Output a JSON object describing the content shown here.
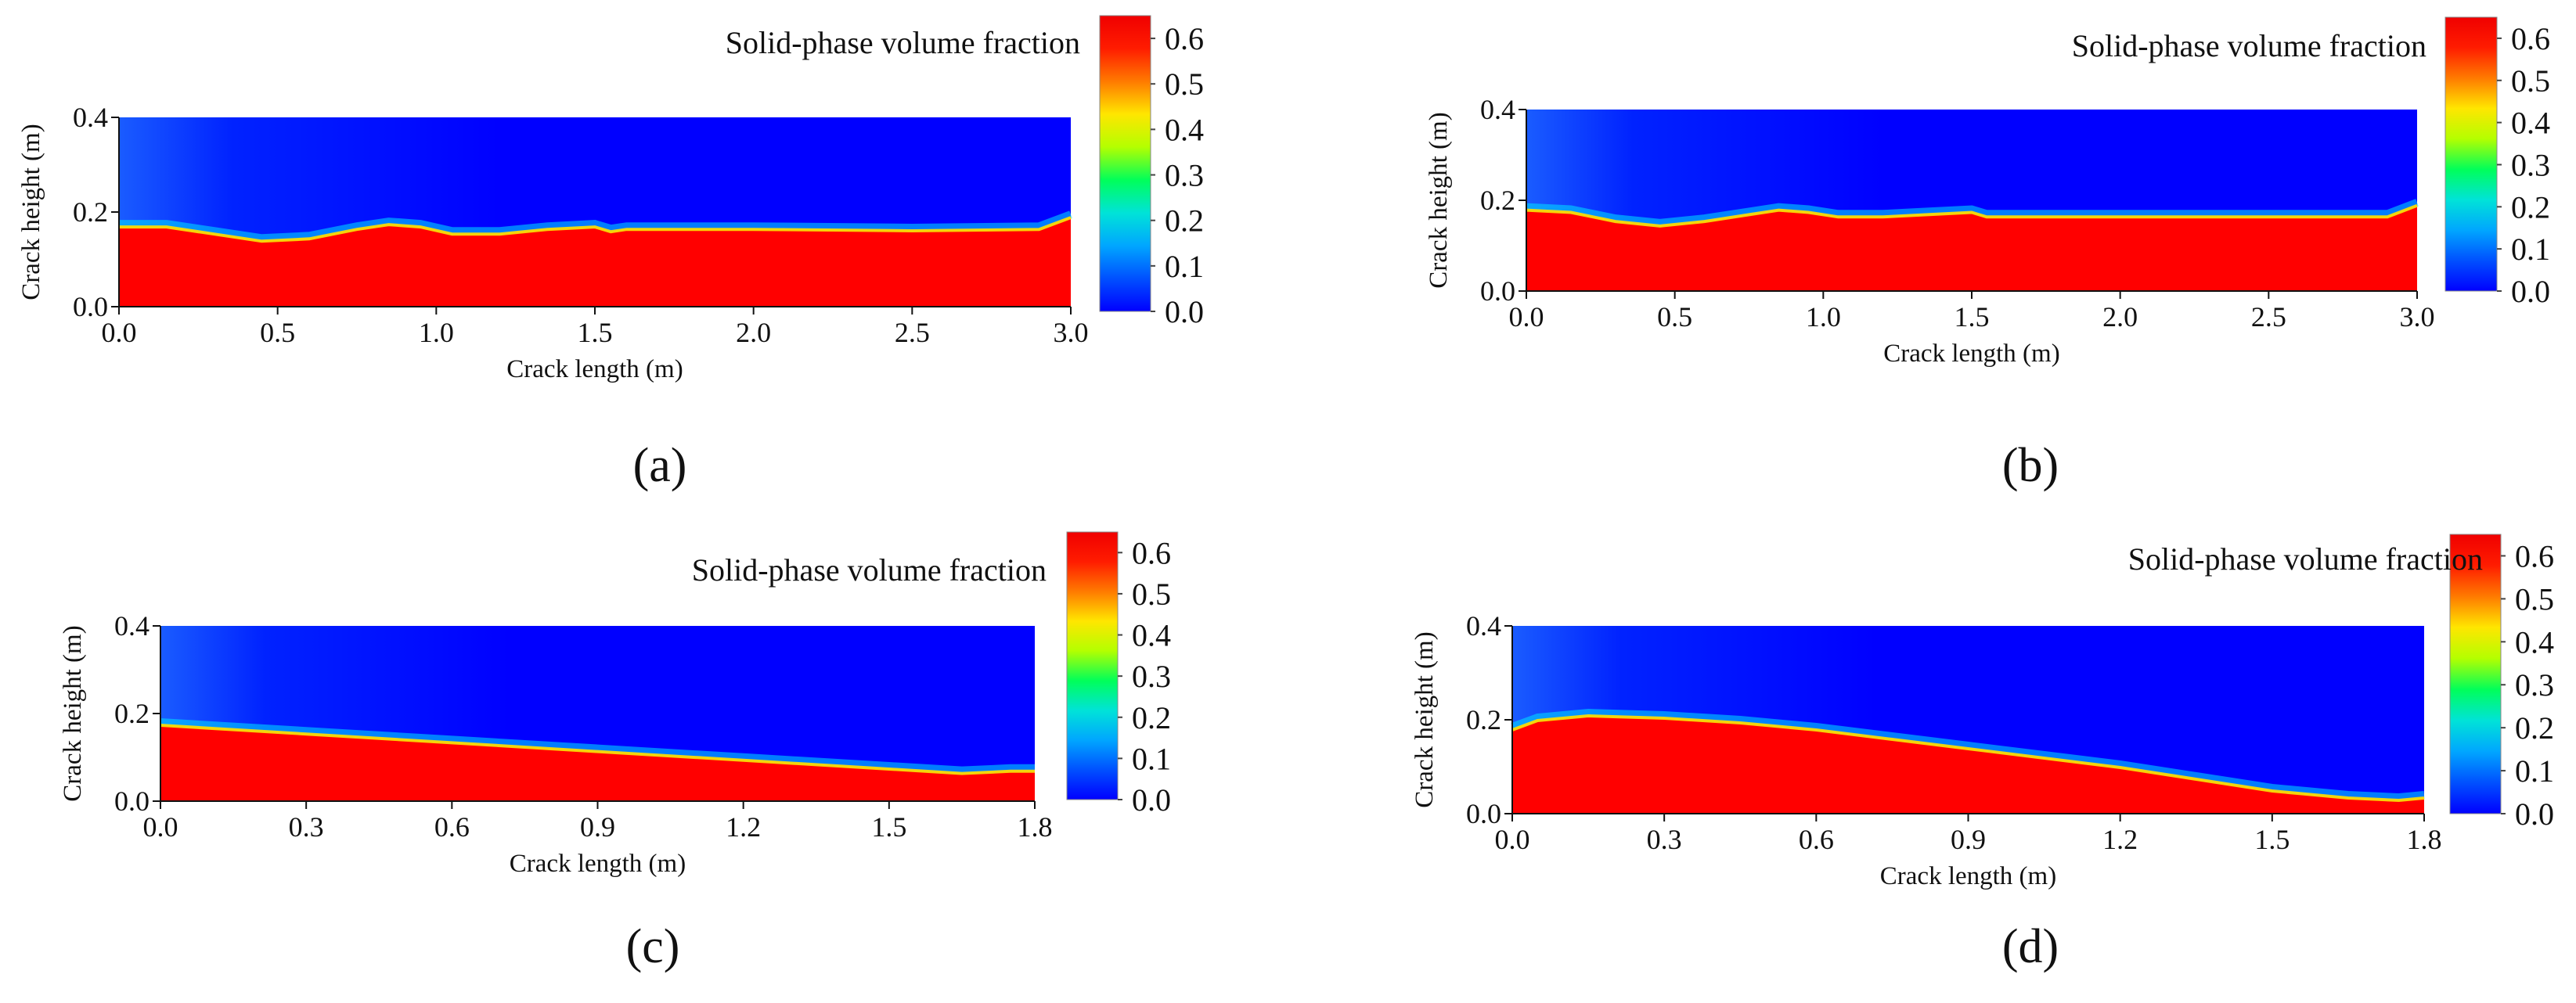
{
  "colors": {
    "colormap": [
      "#0000ff",
      "#0050ff",
      "#00a6ff",
      "#00e3d8",
      "#00ff5a",
      "#b4ff00",
      "#ffe600",
      "#ff7a00",
      "#ff1c00",
      "#f00000"
    ],
    "solid": "#ff0000",
    "fluid": "#0000ff"
  },
  "chart_data": [
    {
      "type": "heatmap",
      "panel_label": "(a)",
      "title": "Solid-phase volume fraction",
      "xlabel": "Crack length (m)",
      "ylabel": "Crack height (m)",
      "xlim": [
        0,
        3.0
      ],
      "ylim": [
        0,
        0.4
      ],
      "x_ticks": [
        "0.0",
        "0.5",
        "1.0",
        "1.5",
        "2.0",
        "2.5",
        "3.0"
      ],
      "y_ticks": [
        "0.0",
        "0.2",
        "0.4"
      ],
      "colorbar_ticks": [
        "0.0",
        "0.1",
        "0.2",
        "0.3",
        "0.4",
        "0.5",
        "0.6"
      ],
      "colorbar_range": [
        0,
        0.65
      ],
      "interface_profile": {
        "x": [
          0,
          0.15,
          0.3,
          0.45,
          0.6,
          0.75,
          0.85,
          0.95,
          1.05,
          1.2,
          1.35,
          1.5,
          1.55,
          1.6,
          1.8,
          2.0,
          2.5,
          2.9,
          3.0
        ],
        "y": [
          0.17,
          0.17,
          0.155,
          0.14,
          0.145,
          0.165,
          0.175,
          0.17,
          0.155,
          0.155,
          0.165,
          0.17,
          0.16,
          0.165,
          0.165,
          0.165,
          0.162,
          0.165,
          0.19
        ]
      }
    },
    {
      "type": "heatmap",
      "panel_label": "(b)",
      "title": "Solid-phase volume fraction",
      "xlabel": "Crack length (m)",
      "ylabel": "Crack height (m)",
      "xlim": [
        0,
        3.0
      ],
      "ylim": [
        0,
        0.4
      ],
      "x_ticks": [
        "0.0",
        "0.5",
        "1.0",
        "1.5",
        "2.0",
        "2.5",
        "3.0"
      ],
      "y_ticks": [
        "0.0",
        "0.2",
        "0.4"
      ],
      "colorbar_ticks": [
        "0.0",
        "0.1",
        "0.2",
        "0.3",
        "0.4",
        "0.5",
        "0.6"
      ],
      "colorbar_range": [
        0,
        0.65
      ],
      "interface_profile": {
        "x": [
          0,
          0.15,
          0.3,
          0.45,
          0.6,
          0.75,
          0.85,
          0.95,
          1.05,
          1.2,
          1.35,
          1.5,
          1.55,
          1.6,
          1.8,
          2.0,
          2.5,
          2.9,
          3.0
        ],
        "y": [
          0.18,
          0.175,
          0.155,
          0.145,
          0.155,
          0.17,
          0.18,
          0.175,
          0.165,
          0.165,
          0.17,
          0.175,
          0.165,
          0.165,
          0.165,
          0.165,
          0.165,
          0.165,
          0.19
        ]
      }
    },
    {
      "type": "heatmap",
      "panel_label": "(c)",
      "title": "Solid-phase volume fraction",
      "xlabel": "Crack length (m)",
      "ylabel": "Crack height (m)",
      "xlim": [
        0,
        1.8
      ],
      "ylim": [
        0,
        0.4
      ],
      "x_ticks": [
        "0.0",
        "0.3",
        "0.6",
        "0.9",
        "1.2",
        "1.5",
        "1.8"
      ],
      "y_ticks": [
        "0.0",
        "0.2",
        "0.4"
      ],
      "colorbar_ticks": [
        "0.0",
        "0.1",
        "0.2",
        "0.3",
        "0.4",
        "0.5",
        "0.6"
      ],
      "colorbar_range": [
        0,
        0.65
      ],
      "interface_profile": {
        "x": [
          0,
          0.3,
          0.6,
          0.9,
          1.2,
          1.5,
          1.65,
          1.75,
          1.8
        ],
        "y": [
          0.175,
          0.155,
          0.135,
          0.115,
          0.095,
          0.075,
          0.065,
          0.07,
          0.07
        ]
      }
    },
    {
      "type": "heatmap",
      "panel_label": "(d)",
      "title": "Solid-phase volume fraction",
      "xlabel": "Crack length (m)",
      "ylabel": "Crack height (m)",
      "xlim": [
        0,
        1.8
      ],
      "ylim": [
        0,
        0.4
      ],
      "x_ticks": [
        "0.0",
        "0.3",
        "0.6",
        "0.9",
        "1.2",
        "1.5",
        "1.8"
      ],
      "y_ticks": [
        "0.0",
        "0.2",
        "0.4"
      ],
      "colorbar_ticks": [
        "0.0",
        "0.1",
        "0.2",
        "0.3",
        "0.4",
        "0.5",
        "0.6"
      ],
      "colorbar_range": [
        0,
        0.65
      ],
      "interface_profile": {
        "x": [
          0,
          0.05,
          0.15,
          0.3,
          0.45,
          0.6,
          0.75,
          0.9,
          1.05,
          1.2,
          1.35,
          1.5,
          1.65,
          1.75,
          1.8
        ],
        "y": [
          0.18,
          0.2,
          0.21,
          0.205,
          0.195,
          0.18,
          0.16,
          0.14,
          0.12,
          0.1,
          0.075,
          0.05,
          0.035,
          0.03,
          0.035
        ]
      }
    }
  ]
}
